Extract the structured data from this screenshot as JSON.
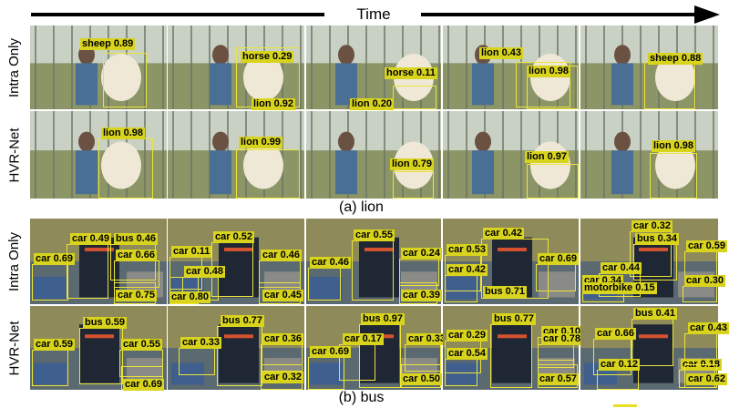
{
  "header": {
    "time_label": "Time"
  },
  "rows": {
    "lion_intra": "Intra Only",
    "lion_hvr": "HVR-Net",
    "bus_intra": "Intra Only",
    "bus_hvr": "HVR-Net"
  },
  "captions": {
    "lion": "(a) lion",
    "bus": "(b) bus"
  },
  "detections": {
    "lion_intra": [
      [
        {
          "label": "sheep 0.89"
        }
      ],
      [
        {
          "label": "horse 0.29"
        },
        {
          "label": "lion 0.92"
        }
      ],
      [
        {
          "label": "horse 0.11"
        },
        {
          "label": "lion 0.20"
        }
      ],
      [
        {
          "label": "lion 0.43"
        },
        {
          "label": "lion 0.98"
        }
      ],
      [
        {
          "label": "sheep 0.88"
        }
      ]
    ],
    "lion_hvr": [
      [
        {
          "label": "lion 0.98"
        }
      ],
      [
        {
          "label": "lion 0.99"
        }
      ],
      [
        {
          "label": "lion 0.79"
        }
      ],
      [
        {
          "label": "lion 0.97"
        }
      ],
      [
        {
          "label": "lion 0.98"
        }
      ]
    ],
    "bus_intra": [
      [
        {
          "label": "car 0.49"
        },
        {
          "label": "bus 0.46"
        },
        {
          "label": "car 0.69"
        },
        {
          "label": "car 0.66"
        },
        {
          "label": "car 0.75"
        }
      ],
      [
        {
          "label": "car 0.52"
        },
        {
          "label": "car 0.11"
        },
        {
          "label": "car 0.46"
        },
        {
          "label": "car 0.48"
        },
        {
          "label": "car 0.80"
        },
        {
          "label": "car 0.45"
        }
      ],
      [
        {
          "label": "car 0.55"
        },
        {
          "label": "car 0.46"
        },
        {
          "label": "car 0.24"
        },
        {
          "label": "car 0.39"
        }
      ],
      [
        {
          "label": "car 0.42"
        },
        {
          "label": "car 0.53"
        },
        {
          "label": "car 0.69"
        },
        {
          "label": "car 0.42"
        },
        {
          "label": "bus 0.71"
        }
      ],
      [
        {
          "label": "car 0.32"
        },
        {
          "label": "bus 0.34"
        },
        {
          "label": "car 0.59"
        },
        {
          "label": "car 0.44"
        },
        {
          "label": "car 0.34"
        },
        {
          "label": "car 0.30"
        },
        {
          "label": "motorbike 0.15"
        }
      ]
    ],
    "bus_hvr": [
      [
        {
          "label": "bus 0.59"
        },
        {
          "label": "car 0.59"
        },
        {
          "label": "car 0.55"
        },
        {
          "label": "car 0.69"
        }
      ],
      [
        {
          "label": "bus 0.77"
        },
        {
          "label": "car 0.36"
        },
        {
          "label": "car 0.33"
        },
        {
          "label": "car 0.32"
        }
      ],
      [
        {
          "label": "bus 0.97"
        },
        {
          "label": "car 0.17"
        },
        {
          "label": "car 0.33"
        },
        {
          "label": "car 0.69"
        },
        {
          "label": "car 0.50"
        }
      ],
      [
        {
          "label": "bus 0.77"
        },
        {
          "label": "car 0.10"
        },
        {
          "label": "car 0.29"
        },
        {
          "label": "car 0.78"
        },
        {
          "label": "car 0.54"
        },
        {
          "label": "car 0.57"
        }
      ],
      [
        {
          "label": "bus 0.41"
        },
        {
          "label": "car 0.43"
        },
        {
          "label": "car 0.66"
        },
        {
          "label": "car 0.12"
        },
        {
          "label": "car 0.18"
        },
        {
          "label": "car 0.62"
        }
      ]
    ]
  },
  "colors": {
    "label_bg": "#d8d41e",
    "box": "#ece43a",
    "arrow": "#000000"
  }
}
